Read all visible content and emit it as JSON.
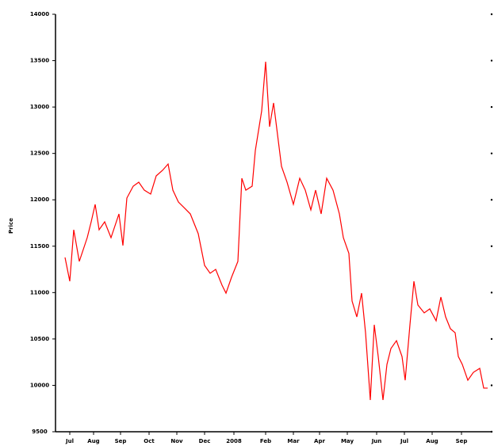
{
  "chart_data": {
    "type": "line",
    "y_label": "Price",
    "x": [
      12,
      18,
      23,
      30,
      40,
      45,
      50,
      55,
      62,
      70,
      80,
      85,
      90,
      98,
      105,
      112,
      120,
      127,
      135,
      142,
      148,
      155,
      162,
      170,
      180,
      188,
      195,
      202,
      210,
      215,
      222,
      230,
      235,
      240,
      248,
      252,
      260,
      265,
      270,
      275,
      280,
      285,
      292,
      300,
      308,
      315,
      322,
      328,
      335,
      342,
      350,
      358,
      363,
      370,
      374,
      380,
      386,
      391,
      397,
      402,
      407,
      413,
      418,
      423,
      430,
      437,
      441,
      447,
      452,
      457,
      465,
      472,
      480,
      486,
      492,
      498,
      504,
      508,
      513,
      520,
      527,
      535,
      540,
      545
    ],
    "series": [
      {
        "name": "Price",
        "color": "#ff0000",
        "values": [
          11379,
          11122,
          11677,
          11336,
          11592,
          11763,
          11951,
          11677,
          11763,
          11592,
          11848,
          11507,
          12019,
          12147,
          12190,
          12104,
          12062,
          12258,
          12318,
          12386,
          12104,
          11976,
          11917,
          11848,
          11635,
          11293,
          11208,
          11250,
          11080,
          10994,
          11165,
          11336,
          12232,
          12104,
          12147,
          12531,
          12958,
          13488,
          12788,
          13044,
          12702,
          12361,
          12190,
          11951,
          12232,
          12104,
          11891,
          12104,
          11848,
          12232,
          12104,
          11848,
          11592,
          11422,
          10909,
          10738,
          10994,
          10567,
          9842,
          10653,
          10311,
          9842,
          10226,
          10397,
          10482,
          10311,
          10055,
          10653,
          11122,
          10866,
          10781,
          10824,
          10696,
          10952,
          10738,
          10610,
          10567,
          10311,
          10226,
          10055,
          10140,
          10183,
          9970,
          9970
        ]
      }
    ],
    "xlim": [
      0,
      550
    ],
    "xticks": [
      {
        "value": 18,
        "label": "Jul"
      },
      {
        "value": 48,
        "label": "Aug"
      },
      {
        "value": 82,
        "label": "Sep"
      },
      {
        "value": 118,
        "label": "Oct"
      },
      {
        "value": 153,
        "label": "Nov"
      },
      {
        "value": 188,
        "label": "Dec"
      },
      {
        "value": 225,
        "label": "2008"
      },
      {
        "value": 265,
        "label": "Feb"
      },
      {
        "value": 300,
        "label": "Mar"
      },
      {
        "value": 333,
        "label": "Apr"
      },
      {
        "value": 368,
        "label": "May"
      },
      {
        "value": 405,
        "label": "Jun"
      },
      {
        "value": 440,
        "label": "Jul"
      },
      {
        "value": 475,
        "label": "Aug"
      },
      {
        "value": 512,
        "label": "Sep"
      }
    ],
    "ylim": [
      9500,
      14000
    ],
    "yticks": [
      9500,
      10000,
      10500,
      11000,
      11500,
      12000,
      12500,
      13000,
      13500,
      14000
    ]
  }
}
